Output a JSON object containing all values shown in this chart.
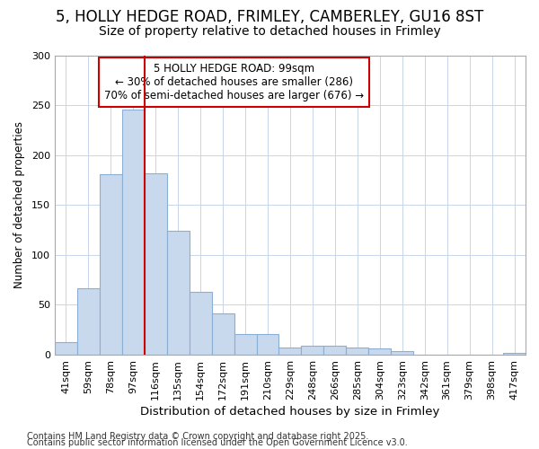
{
  "title1": "5, HOLLY HEDGE ROAD, FRIMLEY, CAMBERLEY, GU16 8ST",
  "title2": "Size of property relative to detached houses in Frimley",
  "xlabel": "Distribution of detached houses by size in Frimley",
  "ylabel": "Number of detached properties",
  "categories": [
    "41sqm",
    "59sqm",
    "78sqm",
    "97sqm",
    "116sqm",
    "135sqm",
    "154sqm",
    "172sqm",
    "191sqm",
    "210sqm",
    "229sqm",
    "248sqm",
    "266sqm",
    "285sqm",
    "304sqm",
    "323sqm",
    "342sqm",
    "361sqm",
    "379sqm",
    "398sqm",
    "417sqm"
  ],
  "values": [
    13,
    67,
    181,
    246,
    182,
    124,
    63,
    41,
    21,
    21,
    7,
    9,
    9,
    7,
    6,
    4,
    0,
    0,
    0,
    0,
    2
  ],
  "bar_color": "#c8d9ee",
  "bar_edge_color": "#8aaed4",
  "vline_x": 3.5,
  "vline_color": "#cc0000",
  "annotation_title": "5 HOLLY HEDGE ROAD: 99sqm",
  "annotation_line1": "← 30% of detached houses are smaller (286)",
  "annotation_line2": "70% of semi-detached houses are larger (676) →",
  "annotation_box_facecolor": "#ffffff",
  "annotation_border_color": "#cc0000",
  "grid_color": "#c8d4e8",
  "plot_bg_color": "#ffffff",
  "fig_bg_color": "#ffffff",
  "ylim": [
    0,
    300
  ],
  "yticks": [
    0,
    50,
    100,
    150,
    200,
    250,
    300
  ],
  "footer1": "Contains HM Land Registry data © Crown copyright and database right 2025.",
  "footer2": "Contains public sector information licensed under the Open Government Licence v3.0.",
  "title1_fontsize": 12,
  "title2_fontsize": 10,
  "xlabel_fontsize": 9.5,
  "ylabel_fontsize": 8.5,
  "tick_fontsize": 8,
  "annotation_fontsize": 8.5,
  "footer_fontsize": 7
}
